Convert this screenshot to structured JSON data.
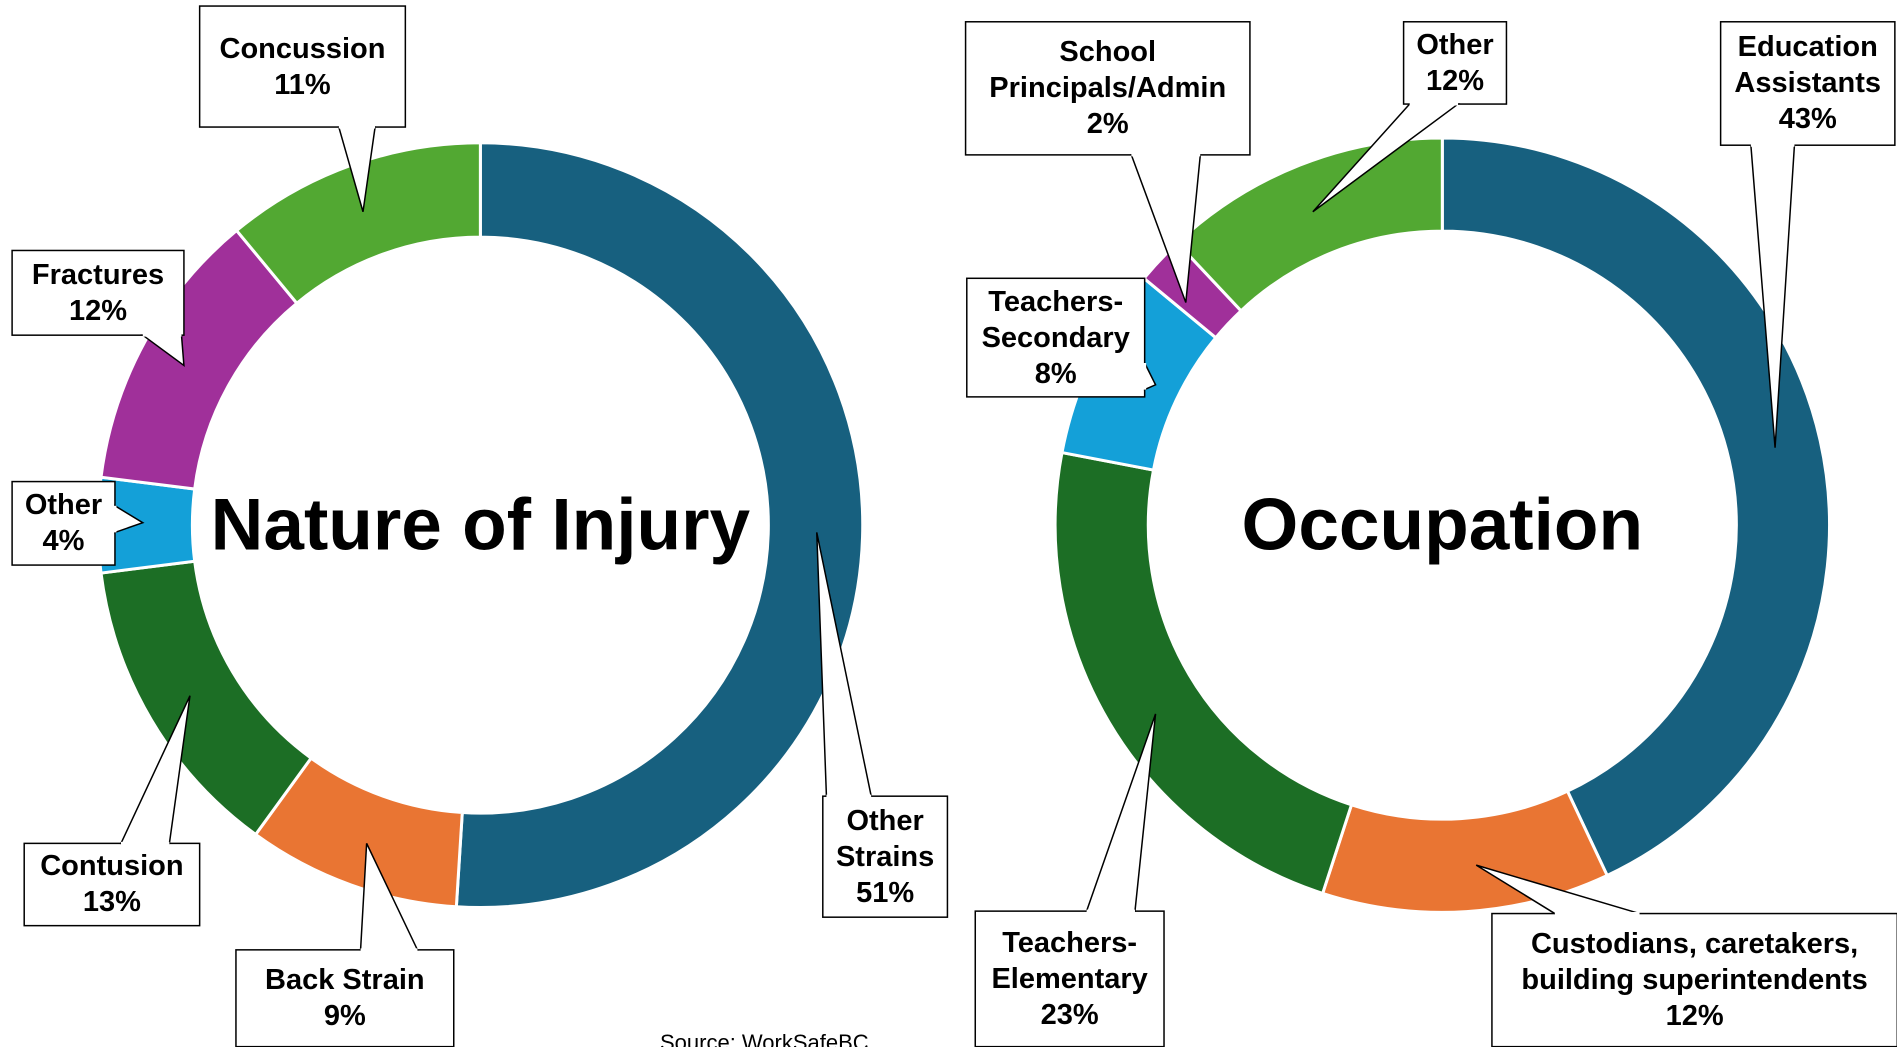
{
  "chart_data": [
    {
      "type": "donut",
      "title": "Nature of Injury",
      "categories": [
        "Other Strains",
        "Back Strain",
        "Contusion",
        "Other",
        "Fractures",
        "Concussion"
      ],
      "values": [
        51,
        9,
        13,
        4,
        12,
        11
      ],
      "value_labels": [
        "51%",
        "9%",
        "13%",
        "4%",
        "12%",
        "11%"
      ],
      "colors": [
        "#17607f",
        "#e97533",
        "#1c6e25",
        "#14a0d8",
        "#a0309a",
        "#52a832"
      ]
    },
    {
      "type": "donut",
      "title": "Occupation",
      "categories": [
        "Education Assistants",
        "Custodians, caretakers, building superintendents",
        "Teachers-Elementary",
        "Teachers-Secondary",
        "School Principals/Admin",
        "Other"
      ],
      "values": [
        43,
        12,
        23,
        8,
        2,
        12
      ],
      "value_labels": [
        "43%",
        "12%",
        "23%",
        "8%",
        "2%",
        "12%"
      ],
      "colors": [
        "#17607f",
        "#e97533",
        "#1c6e25",
        "#14a0d8",
        "#a0309a",
        "#52a832"
      ]
    }
  ],
  "source": "Source: WorkSafeBC"
}
